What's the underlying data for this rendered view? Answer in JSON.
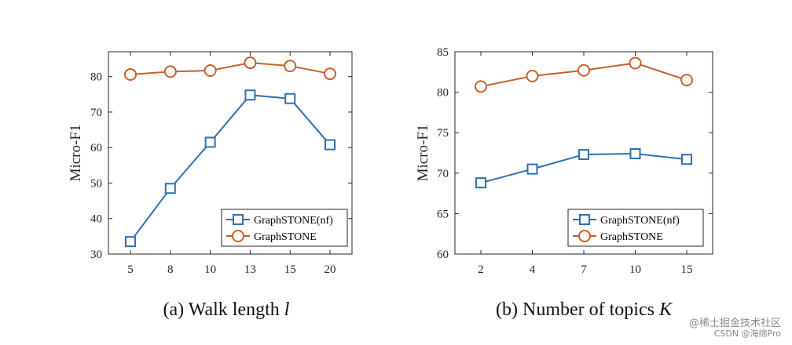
{
  "chart_data": [
    {
      "type": "line",
      "categories": [
        "5",
        "8",
        "10",
        "13",
        "15",
        "20"
      ],
      "series": [
        {
          "name": "GraphSTONE(nf)",
          "values": [
            33.5,
            48.5,
            61.5,
            74.8,
            73.8,
            60.8
          ],
          "color": "#2e6fb3",
          "marker": "square"
        },
        {
          "name": "GraphSTONE",
          "values": [
            80.6,
            81.4,
            81.7,
            83.9,
            83.0,
            80.8
          ],
          "color": "#c8602a",
          "marker": "circle"
        }
      ],
      "ylabel": "Micro-F1",
      "ylim": [
        30,
        87
      ],
      "yticks": [
        30,
        40,
        50,
        60,
        70,
        80
      ],
      "legend": "bottom-right",
      "grid": false,
      "caption_prefix": "(a)",
      "caption_text": "Walk length",
      "caption_var": "l"
    },
    {
      "type": "line",
      "categories": [
        "2",
        "4",
        "7",
        "10",
        "15"
      ],
      "series": [
        {
          "name": "GraphSTONE(nf)",
          "values": [
            68.8,
            70.5,
            72.3,
            72.4,
            71.7
          ],
          "color": "#2e6fb3",
          "marker": "square"
        },
        {
          "name": "GraphSTONE",
          "values": [
            80.7,
            82.0,
            82.7,
            83.6,
            81.5
          ],
          "color": "#c8602a",
          "marker": "circle"
        }
      ],
      "ylabel": "Micro-F1",
      "ylim": [
        60,
        85
      ],
      "yticks": [
        60,
        65,
        70,
        75,
        80,
        85
      ],
      "legend": "bottom-right",
      "grid": false,
      "caption_prefix": "(b)",
      "caption_text": "Number of topics",
      "caption_var": "K"
    }
  ],
  "watermark": {
    "line1": "@稀土掘金技术社区",
    "line2": "CSDN @海绵Pro"
  }
}
